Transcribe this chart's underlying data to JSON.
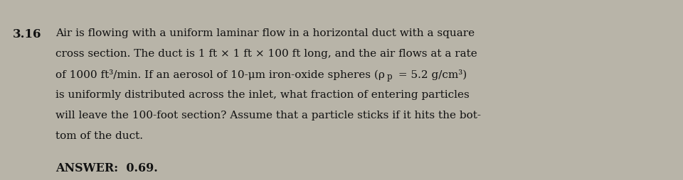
{
  "problem_number": "3.16",
  "line1": "Air is flowing with a uniform laminar flow in a horizontal duct with a square",
  "line2": "cross section. The duct is 1 ft × 1 ft × 100 ft long, and the air flows at a rate",
  "line3a": "of 1000 ft³/min. If an aerosol of 10-μm iron-oxide spheres (ρ",
  "line3b": "p",
  "line3c": " = 5.2 g/cm³)",
  "line4": "is uniformly distributed across the inlet, what fraction of entering particles",
  "line5": "will leave the 100-foot section? Assume that a particle sticks if it hits the bot-",
  "line6": "tom of the duct.",
  "answer_line": "ANSWER:  0.69.",
  "bg_color": "#b8b4a8",
  "text_color": "#111111",
  "font_size": 11.0,
  "answer_font_size": 11.5,
  "problem_num_font_size": 12.0
}
